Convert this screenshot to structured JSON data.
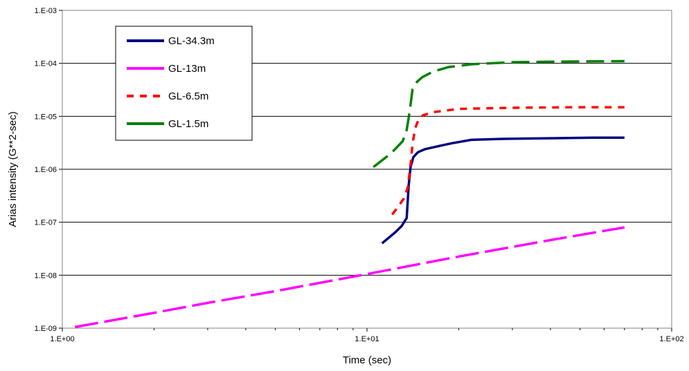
{
  "chart_data": {
    "type": "line",
    "xlabel": "Time (sec)",
    "ylabel": "Arias intensity (G**2-sec)",
    "x_scale": "log",
    "y_scale": "log",
    "xlim": [
      1,
      100
    ],
    "ylim": [
      1e-09,
      0.001
    ],
    "x_ticks": [
      1,
      10,
      100
    ],
    "x_tick_labels": [
      "1.E+00",
      "1.E+01",
      "1.E+02"
    ],
    "y_ticks": [
      0.001,
      0.0001,
      1e-05,
      1e-06,
      1e-07,
      1e-08,
      1e-09
    ],
    "y_tick_labels": [
      "1.E-03",
      "1.E-04",
      "1.E-05",
      "1.E-06",
      "1.E-07",
      "1.E-08",
      "1.E-09"
    ],
    "grid": "horizontal major",
    "legend_position": "top-left",
    "series": [
      {
        "name": "GL-34.3m",
        "color": "#000080",
        "dash": "solid",
        "points": [
          [
            11.2,
            4e-08
          ],
          [
            12.4,
            6.5e-08
          ],
          [
            13.0,
            8.5e-08
          ],
          [
            13.5,
            1.2e-07
          ],
          [
            13.7,
            5e-07
          ],
          [
            13.9,
            1.1e-06
          ],
          [
            14.2,
            1.7e-06
          ],
          [
            14.7,
            2.1e-06
          ],
          [
            15.5,
            2.4e-06
          ],
          [
            17.0,
            2.7e-06
          ],
          [
            19.0,
            3.1e-06
          ],
          [
            22.0,
            3.6e-06
          ],
          [
            28.0,
            3.75e-06
          ],
          [
            40.0,
            3.85e-06
          ],
          [
            55.0,
            3.95e-06
          ],
          [
            70.0,
            3.95e-06
          ]
        ]
      },
      {
        "name": "GL-13m",
        "color": "#ff00ff",
        "dash": "long-dash",
        "points": [
          [
            1.1,
            1.05e-09
          ],
          [
            2.0,
            1.95e-09
          ],
          [
            3.0,
            3e-09
          ],
          [
            5.0,
            5e-09
          ],
          [
            10.0,
            1.05e-08
          ],
          [
            20.0,
            2.25e-08
          ],
          [
            40.0,
            4.6e-08
          ],
          [
            70.0,
            8e-08
          ]
        ]
      },
      {
        "name": "GL-6.5m",
        "color": "#ff0000",
        "dash": "short-dash",
        "points": [
          [
            12.1,
            1.4e-07
          ],
          [
            12.6,
            1.9e-07
          ],
          [
            13.2,
            2.8e-07
          ],
          [
            13.6,
            4.5e-07
          ],
          [
            13.9,
            1.2e-06
          ],
          [
            14.1,
            3e-06
          ],
          [
            14.4,
            6e-06
          ],
          [
            14.8,
            9e-06
          ],
          [
            15.3,
            1.05e-05
          ],
          [
            16.5,
            1.2e-05
          ],
          [
            20.0,
            1.38e-05
          ],
          [
            30.0,
            1.45e-05
          ],
          [
            45.0,
            1.48e-05
          ],
          [
            70.0,
            1.48e-05
          ]
        ]
      },
      {
        "name": "GL-1.5m",
        "color": "#008000",
        "dash": "dash",
        "points": [
          [
            10.5,
            1.1e-06
          ],
          [
            12.0,
            2e-06
          ],
          [
            13.1,
            3.4e-06
          ],
          [
            13.5,
            5.5e-06
          ],
          [
            13.8,
            1.2e-05
          ],
          [
            14.1,
            3.2e-05
          ],
          [
            14.6,
            4.5e-05
          ],
          [
            15.2,
            5.5e-05
          ],
          [
            16.5,
            7e-05
          ],
          [
            18.5,
            8.5e-05
          ],
          [
            22.0,
            9.6e-05
          ],
          [
            30.0,
            0.000105
          ],
          [
            45.0,
            0.000108
          ],
          [
            70.0,
            0.00011
          ]
        ]
      }
    ]
  }
}
